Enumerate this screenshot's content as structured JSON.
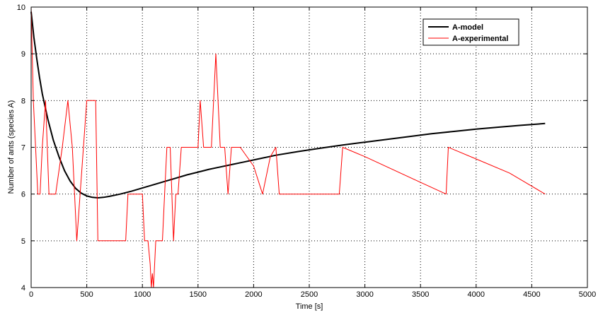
{
  "chart_data": {
    "type": "line",
    "title": "",
    "xlabel": "Time [s]",
    "ylabel": "Number of ants (species A)",
    "xlim": [
      0,
      5000
    ],
    "ylim": [
      4,
      10
    ],
    "xticks": [
      0,
      500,
      1000,
      1500,
      2000,
      2500,
      3000,
      3500,
      4000,
      4500,
      5000
    ],
    "yticks": [
      4,
      5,
      6,
      7,
      8,
      9,
      10
    ],
    "grid": true,
    "legend_position": "top-right",
    "series": [
      {
        "name": "A-model",
        "color": "#000000",
        "x": [
          0,
          25,
          50,
          75,
          100,
          150,
          200,
          250,
          300,
          350,
          400,
          450,
          500,
          550,
          600,
          650,
          700,
          800,
          900,
          1000,
          1100,
          1200,
          1300,
          1400,
          1500,
          1600,
          1700,
          1800,
          1900,
          2000,
          2200,
          2400,
          2600,
          2800,
          3000,
          3200,
          3400,
          3600,
          3800,
          4000,
          4200,
          4400,
          4620
        ],
        "y": [
          9.9,
          9.35,
          8.9,
          8.5,
          8.15,
          7.6,
          7.15,
          6.8,
          6.5,
          6.28,
          6.12,
          6.02,
          5.96,
          5.93,
          5.92,
          5.93,
          5.95,
          6.0,
          6.06,
          6.13,
          6.2,
          6.27,
          6.34,
          6.41,
          6.47,
          6.53,
          6.58,
          6.63,
          6.68,
          6.73,
          6.83,
          6.91,
          6.98,
          7.05,
          7.11,
          7.17,
          7.23,
          7.29,
          7.34,
          7.39,
          7.43,
          7.47,
          7.51
        ]
      },
      {
        "name": "A-experimental",
        "color": "#ff0000",
        "x": [
          0,
          20,
          40,
          60,
          80,
          100,
          130,
          160,
          190,
          220,
          280,
          330,
          370,
          410,
          440,
          470,
          500,
          520,
          550,
          580,
          600,
          650,
          700,
          750,
          800,
          850,
          870,
          890,
          920,
          950,
          980,
          1000,
          1020,
          1050,
          1070,
          1080,
          1090,
          1100,
          1120,
          1150,
          1180,
          1200,
          1220,
          1250,
          1280,
          1300,
          1320,
          1350,
          1370,
          1380,
          1400,
          1450,
          1500,
          1520,
          1550,
          1580,
          1620,
          1660,
          1680,
          1700,
          1740,
          1770,
          1800,
          1830,
          1860,
          1880,
          2000,
          2080,
          2150,
          2200,
          2230,
          2400,
          2600,
          2770,
          2800,
          3000,
          3500,
          3730,
          3750,
          4000,
          4300,
          4620
        ],
        "y": [
          10,
          8,
          7,
          6,
          6,
          7,
          8,
          6,
          6,
          6,
          7,
          8,
          7,
          5,
          6,
          7,
          8,
          8,
          8,
          8,
          5,
          5,
          5,
          5,
          5,
          5,
          6,
          6,
          6,
          6,
          6,
          6,
          5,
          5,
          4.5,
          4,
          4.3,
          4,
          5,
          5,
          5,
          6,
          7,
          7,
          5,
          6,
          6,
          7,
          7,
          7,
          7,
          7,
          7,
          8,
          7,
          7,
          7,
          9,
          8,
          7,
          7,
          6,
          7,
          7,
          7,
          7,
          6.6,
          6,
          6.8,
          7,
          6,
          6,
          6,
          6,
          7,
          6.8,
          6.25,
          6,
          7,
          6.75,
          6.45,
          6
        ]
      }
    ]
  }
}
